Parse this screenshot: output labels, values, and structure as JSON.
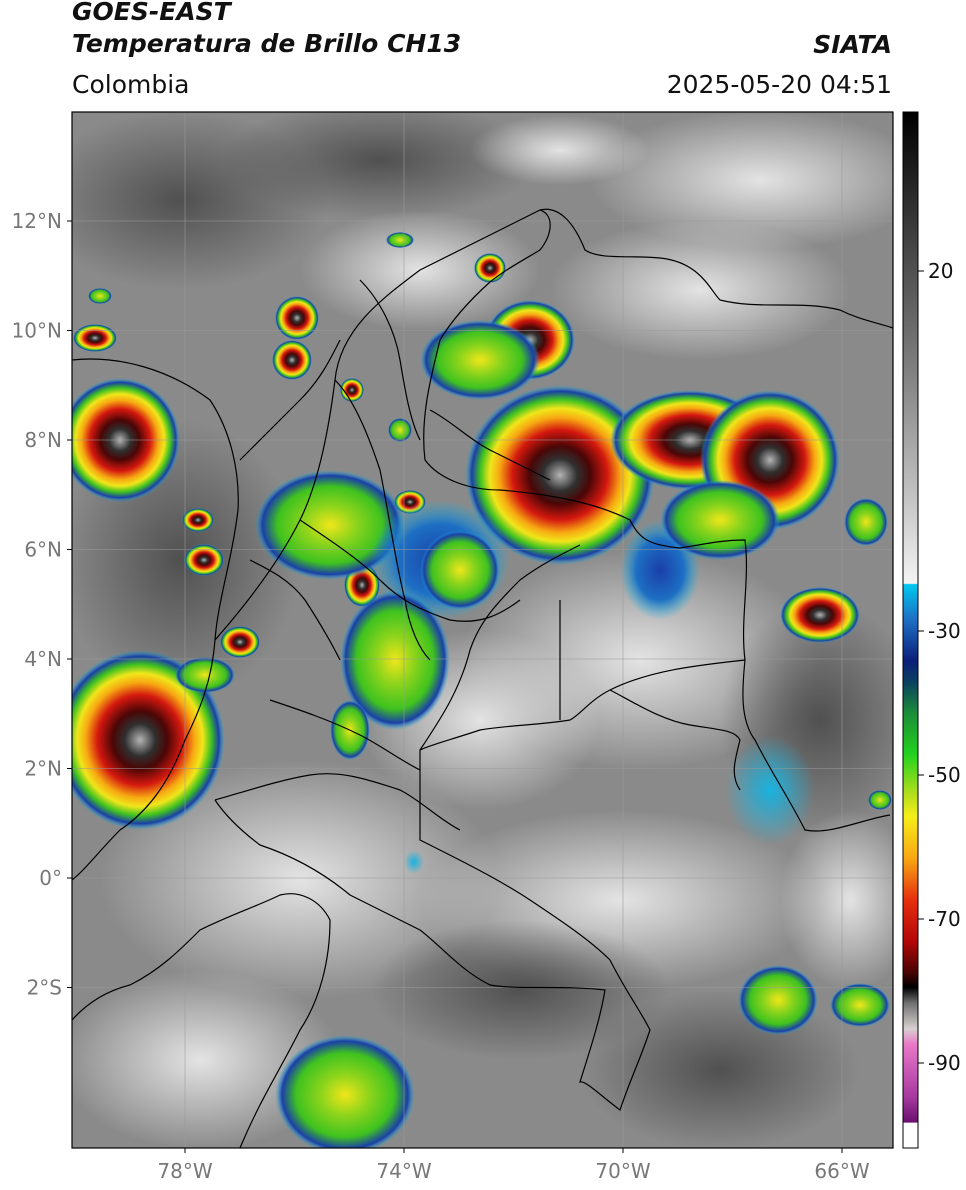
{
  "header": {
    "satellite": "GOES-EAST",
    "product": "Temperatura de Brillo CH13",
    "region": "Colombia",
    "brand": "SIATA",
    "datetime": "2025-05-20 04:51"
  },
  "map": {
    "lat_ticks": [
      {
        "value": 12,
        "label": "12°N"
      },
      {
        "value": 10,
        "label": "10°N"
      },
      {
        "value": 8,
        "label": "8°N"
      },
      {
        "value": 6,
        "label": "6°N"
      },
      {
        "value": 4,
        "label": "4°N"
      },
      {
        "value": 2,
        "label": "2°N"
      },
      {
        "value": 0,
        "label": "0°"
      },
      {
        "value": -2,
        "label": "2°S"
      }
    ],
    "lon_ticks": [
      {
        "value": -78,
        "label": "78°W"
      },
      {
        "value": -74,
        "label": "74°W"
      },
      {
        "value": -70,
        "label": "70°W"
      },
      {
        "value": -66,
        "label": "66°W"
      }
    ],
    "colorbar_ticks": [
      {
        "value": 20,
        "label": "20"
      },
      {
        "value": -30,
        "label": "-30"
      },
      {
        "value": -50,
        "label": "-50"
      },
      {
        "value": -70,
        "label": "-70"
      },
      {
        "value": -90,
        "label": "-90"
      }
    ],
    "colors": {
      "cloud_gray_light": "#d9d9d9",
      "cloud_gray_dark": "#5a5a5a",
      "convective_cyan": "#19b3e0",
      "convective_blue": "#1a3fa8",
      "convective_green": "#3fc21f",
      "convective_yellow": "#f0e61a",
      "convective_red": "#d4180f",
      "convective_darkred": "#400606",
      "border_line": "#000000"
    }
  }
}
